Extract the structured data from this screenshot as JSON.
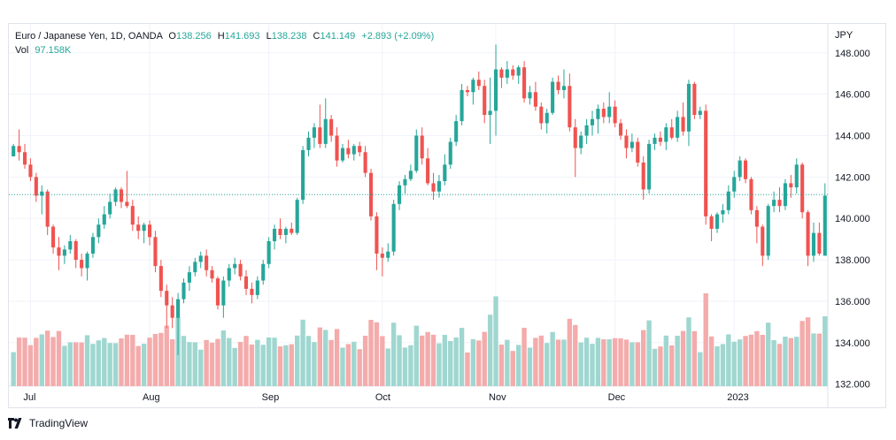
{
  "legend": {
    "symbol": "Euro / Japanese Yen, 1D, OANDA",
    "o_label": "O",
    "o_value": "138.256",
    "h_label": "H",
    "h_value": "141.693",
    "l_label": "L",
    "l_value": "138.238",
    "c_label": "C",
    "c_value": "141.149",
    "change": "+2.893 (+2.09%)",
    "vol_label": "Vol",
    "vol_value": "97.158K"
  },
  "footer": {
    "brand": "TradingView"
  },
  "colors": {
    "up": "#26a69a",
    "down": "#ef5350",
    "up_vol": "#9fd7d0",
    "down_vol": "#f4abab",
    "grid": "#f0f3fa",
    "axis_text": "#131722"
  },
  "chart_data": {
    "type": "candlestick",
    "currency_label": "JPY",
    "y_ticks": [
      "132.000",
      "134.000",
      "136.000",
      "138.000",
      "140.000",
      "142.000",
      "144.000",
      "146.000",
      "148.000"
    ],
    "ylim": [
      131.9,
      149.4
    ],
    "x_ticks": [
      "Jul",
      "Aug",
      "Sep",
      "Oct",
      "Nov",
      "Dec",
      "2023"
    ],
    "x_tick_index": [
      3,
      24,
      45,
      65,
      85,
      106,
      127
    ],
    "last_price": 141.149,
    "grid": true,
    "volume_note": "volume bars estimated",
    "ohlc": [
      [
        143.0,
        143.6,
        143.0,
        143.5
      ],
      [
        143.5,
        144.3,
        142.8,
        143.2
      ],
      [
        143.2,
        143.6,
        142.4,
        142.6
      ],
      [
        142.6,
        142.9,
        141.8,
        142.0
      ],
      [
        142.0,
        142.2,
        140.8,
        141.1
      ],
      [
        141.1,
        141.6,
        140.2,
        141.3
      ],
      [
        141.3,
        141.4,
        139.2,
        139.6
      ],
      [
        139.6,
        139.7,
        138.3,
        138.6
      ],
      [
        138.6,
        139.1,
        137.5,
        138.2
      ],
      [
        138.2,
        138.7,
        137.8,
        138.5
      ],
      [
        138.5,
        139.2,
        138.3,
        138.9
      ],
      [
        138.9,
        139.0,
        137.6,
        138.0
      ],
      [
        138.0,
        138.3,
        137.2,
        137.6
      ],
      [
        137.6,
        138.4,
        137.0,
        138.3
      ],
      [
        138.3,
        139.3,
        138.1,
        139.1
      ],
      [
        139.1,
        140.0,
        138.8,
        139.7
      ],
      [
        139.7,
        140.6,
        139.5,
        140.2
      ],
      [
        140.2,
        141.2,
        140.0,
        140.8
      ],
      [
        140.8,
        141.5,
        140.6,
        141.4
      ],
      [
        141.4,
        141.5,
        140.5,
        140.8
      ],
      [
        140.8,
        142.3,
        140.5,
        140.6
      ],
      [
        140.6,
        140.9,
        139.4,
        139.7
      ],
      [
        139.7,
        140.1,
        139.0,
        139.4
      ],
      [
        139.4,
        139.8,
        138.8,
        139.7
      ],
      [
        139.7,
        139.9,
        138.7,
        139.1
      ],
      [
        139.1,
        139.4,
        137.4,
        137.7
      ],
      [
        137.7,
        138.0,
        136.2,
        136.5
      ],
      [
        136.5,
        136.8,
        134.7,
        135.8
      ],
      [
        135.8,
        136.2,
        134.7,
        135.2
      ],
      [
        135.2,
        136.4,
        133.4,
        136.1
      ],
      [
        136.1,
        137.1,
        135.9,
        136.9
      ],
      [
        136.9,
        137.7,
        136.5,
        137.4
      ],
      [
        137.4,
        138.1,
        137.2,
        137.9
      ],
      [
        137.9,
        138.4,
        137.6,
        138.2
      ],
      [
        138.2,
        138.5,
        137.2,
        137.5
      ],
      [
        137.5,
        137.7,
        136.9,
        137.1
      ],
      [
        137.1,
        137.2,
        135.6,
        135.8
      ],
      [
        135.8,
        137.2,
        135.2,
        137.0
      ],
      [
        137.0,
        137.8,
        136.7,
        137.6
      ],
      [
        137.6,
        138.1,
        137.3,
        137.8
      ],
      [
        137.8,
        138.0,
        137.0,
        137.2
      ],
      [
        137.2,
        137.5,
        136.3,
        136.6
      ],
      [
        136.6,
        136.9,
        135.9,
        136.3
      ],
      [
        136.3,
        137.2,
        136.1,
        137.0
      ],
      [
        137.0,
        138.0,
        136.8,
        137.8
      ],
      [
        137.8,
        139.1,
        137.6,
        138.9
      ],
      [
        138.9,
        139.7,
        138.5,
        139.5
      ],
      [
        139.5,
        140.0,
        139.0,
        139.2
      ],
      [
        139.2,
        139.6,
        138.8,
        139.5
      ],
      [
        139.5,
        139.8,
        139.2,
        139.3
      ],
      [
        139.3,
        141.0,
        139.2,
        140.9
      ],
      [
        140.9,
        143.5,
        140.7,
        143.3
      ],
      [
        143.3,
        144.2,
        143.0,
        143.9
      ],
      [
        143.9,
        144.6,
        143.4,
        144.4
      ],
      [
        144.4,
        145.5,
        143.4,
        143.6
      ],
      [
        143.6,
        145.8,
        143.4,
        144.8
      ],
      [
        144.8,
        145.0,
        143.7,
        144.0
      ],
      [
        144.0,
        144.4,
        142.5,
        142.8
      ],
      [
        142.8,
        143.6,
        142.7,
        143.4
      ],
      [
        143.4,
        143.8,
        142.9,
        143.1
      ],
      [
        143.1,
        143.6,
        142.8,
        143.5
      ],
      [
        143.5,
        143.7,
        143.0,
        143.2
      ],
      [
        143.2,
        143.5,
        142.0,
        142.2
      ],
      [
        142.2,
        142.4,
        139.9,
        140.1
      ],
      [
        140.1,
        140.3,
        137.5,
        138.3
      ],
      [
        138.3,
        138.6,
        137.2,
        138.1
      ],
      [
        138.1,
        138.8,
        137.9,
        138.4
      ],
      [
        138.4,
        140.9,
        138.2,
        140.7
      ],
      [
        140.7,
        141.8,
        140.4,
        141.6
      ],
      [
        141.6,
        142.1,
        141.2,
        141.9
      ],
      [
        141.9,
        142.6,
        141.8,
        142.3
      ],
      [
        142.3,
        144.3,
        142.2,
        144.0
      ],
      [
        144.0,
        144.4,
        142.6,
        142.9
      ],
      [
        142.9,
        143.4,
        141.6,
        141.7
      ],
      [
        141.7,
        142.2,
        140.9,
        141.3
      ],
      [
        141.3,
        142.1,
        141.0,
        141.8
      ],
      [
        141.8,
        143.1,
        141.6,
        142.6
      ],
      [
        142.6,
        143.9,
        142.4,
        143.7
      ],
      [
        143.7,
        145.0,
        143.5,
        144.7
      ],
      [
        144.7,
        146.5,
        144.5,
        146.2
      ],
      [
        146.2,
        146.4,
        145.9,
        146.1
      ],
      [
        146.1,
        146.8,
        145.5,
        146.7
      ],
      [
        146.7,
        147.1,
        146.2,
        146.4
      ],
      [
        146.4,
        146.7,
        144.6,
        145.0
      ],
      [
        145.0,
        146.8,
        143.6,
        145.2
      ],
      [
        145.2,
        148.4,
        144.0,
        147.2
      ],
      [
        147.2,
        147.3,
        146.3,
        146.8
      ],
      [
        146.8,
        147.6,
        146.5,
        147.2
      ],
      [
        147.2,
        147.4,
        146.7,
        146.9
      ],
      [
        146.9,
        147.4,
        146.5,
        147.3
      ],
      [
        147.3,
        147.6,
        145.6,
        145.8
      ],
      [
        145.8,
        146.4,
        145.5,
        146.1
      ],
      [
        146.1,
        146.6,
        145.2,
        145.4
      ],
      [
        145.4,
        145.6,
        144.3,
        144.6
      ],
      [
        144.6,
        145.3,
        144.1,
        145.1
      ],
      [
        145.1,
        146.8,
        145.0,
        146.6
      ],
      [
        146.6,
        146.9,
        146.0,
        146.2
      ],
      [
        146.2,
        147.2,
        145.8,
        146.4
      ],
      [
        146.4,
        147.0,
        144.2,
        144.4
      ],
      [
        144.4,
        144.8,
        142.0,
        143.4
      ],
      [
        143.4,
        144.2,
        143.1,
        144.0
      ],
      [
        144.0,
        144.8,
        143.6,
        144.5
      ],
      [
        144.5,
        145.2,
        144.0,
        144.8
      ],
      [
        144.8,
        145.5,
        144.1,
        145.3
      ],
      [
        145.3,
        145.6,
        144.6,
        144.9
      ],
      [
        144.9,
        146.1,
        144.6,
        145.4
      ],
      [
        145.4,
        145.7,
        144.4,
        144.6
      ],
      [
        144.6,
        144.8,
        143.8,
        144.0
      ],
      [
        144.0,
        144.3,
        142.9,
        143.4
      ],
      [
        143.4,
        144.1,
        143.2,
        143.7
      ],
      [
        143.7,
        143.9,
        142.5,
        142.7
      ],
      [
        142.7,
        143.0,
        140.9,
        141.4
      ],
      [
        141.4,
        143.8,
        141.2,
        143.6
      ],
      [
        143.6,
        144.1,
        143.3,
        143.9
      ],
      [
        143.9,
        144.2,
        143.5,
        143.7
      ],
      [
        143.7,
        144.6,
        143.3,
        144.4
      ],
      [
        144.4,
        144.8,
        143.8,
        143.9
      ],
      [
        143.9,
        145.2,
        143.7,
        144.9
      ],
      [
        144.9,
        145.6,
        144.0,
        144.2
      ],
      [
        144.2,
        146.7,
        143.5,
        146.5
      ],
      [
        146.5,
        146.6,
        144.8,
        145.0
      ],
      [
        145.0,
        145.4,
        144.8,
        145.2
      ],
      [
        145.2,
        145.5,
        139.7,
        140.1
      ],
      [
        140.1,
        140.2,
        138.9,
        139.5
      ],
      [
        139.5,
        140.3,
        139.3,
        140.2
      ],
      [
        140.2,
        140.7,
        139.8,
        140.4
      ],
      [
        140.4,
        141.6,
        140.2,
        141.3
      ],
      [
        141.3,
        142.3,
        141.0,
        142.0
      ],
      [
        142.0,
        143.0,
        141.8,
        142.8
      ],
      [
        142.8,
        142.9,
        141.7,
        141.9
      ],
      [
        141.9,
        142.0,
        140.2,
        140.4
      ],
      [
        140.4,
        140.6,
        138.8,
        139.6
      ],
      [
        139.6,
        139.7,
        137.7,
        138.2
      ],
      [
        138.2,
        140.7,
        138.0,
        140.6
      ],
      [
        140.6,
        141.3,
        140.3,
        140.9
      ],
      [
        140.9,
        141.5,
        140.3,
        140.6
      ],
      [
        140.6,
        141.9,
        140.4,
        141.7
      ],
      [
        141.7,
        142.1,
        141.0,
        141.5
      ],
      [
        141.5,
        142.9,
        141.2,
        142.6
      ],
      [
        142.6,
        142.7,
        140.0,
        140.3
      ],
      [
        140.3,
        140.4,
        137.7,
        138.2
      ],
      [
        138.2,
        139.8,
        137.9,
        139.3
      ],
      [
        139.3,
        139.8,
        138.2,
        138.3
      ],
      [
        138.2,
        141.7,
        138.2,
        141.1
      ]
    ]
  }
}
